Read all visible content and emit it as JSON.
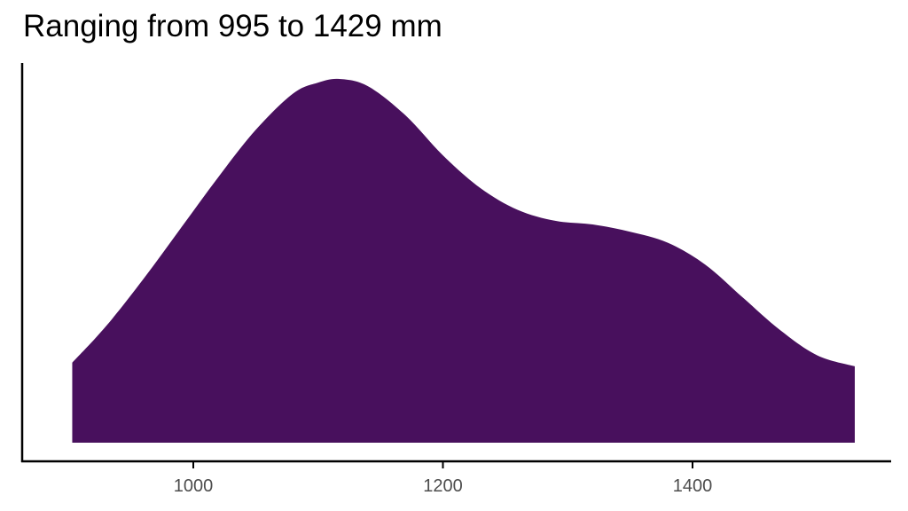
{
  "chart_data": {
    "type": "area",
    "title": "Ranging from 995 to 1429 mm",
    "xlabel": "",
    "ylabel": "",
    "xlim": [
      870,
      1560
    ],
    "ylim": [
      0,
      1
    ],
    "grid": false,
    "x_ticks": [
      1000,
      1200,
      1400
    ],
    "x_tick_labels": [
      "1000",
      "1200",
      "1400"
    ],
    "colors": {
      "fill": "#48105d",
      "axis": "#000000",
      "tick_label": "#4d4d4d"
    },
    "series": [
      {
        "x": [
          903,
          930,
          960,
          990,
          1020,
          1050,
          1080,
          1100,
          1117,
          1140,
          1170,
          1200,
          1230,
          1260,
          1290,
          1320,
          1350,
          1380,
          1410,
          1440,
          1470,
          1500,
          1530
        ],
        "y": [
          0.22,
          0.32,
          0.45,
          0.59,
          0.73,
          0.86,
          0.96,
          0.99,
          1.0,
          0.98,
          0.9,
          0.79,
          0.7,
          0.64,
          0.61,
          0.6,
          0.58,
          0.55,
          0.49,
          0.4,
          0.31,
          0.24,
          0.21
        ]
      }
    ]
  }
}
